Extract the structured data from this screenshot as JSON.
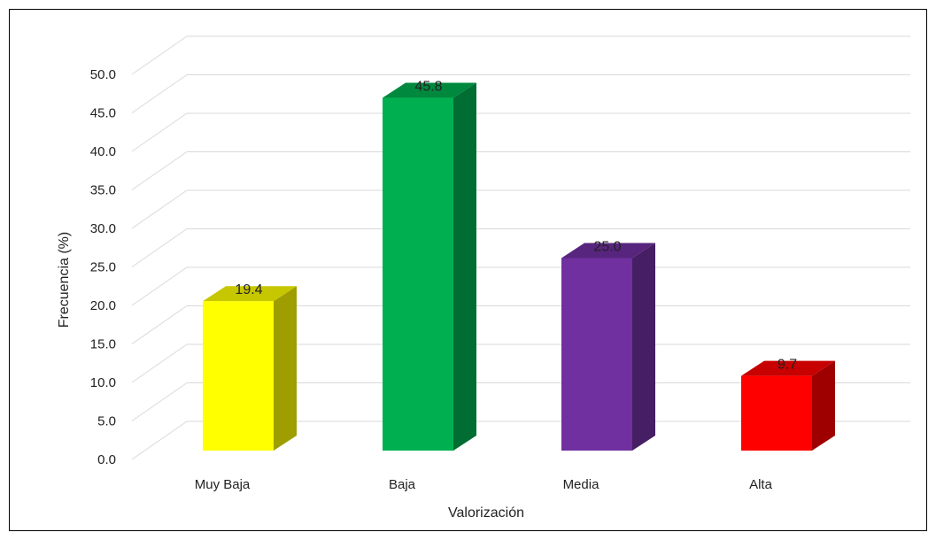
{
  "chart_data": {
    "type": "bar",
    "title": "",
    "xlabel": "Valorización",
    "ylabel": "Frecuencia (%)",
    "categories": [
      "Muy Baja",
      "Baja",
      "Media",
      "Alta"
    ],
    "values": [
      19.4,
      45.8,
      25.0,
      9.7
    ],
    "value_labels": [
      "19.4",
      "45.8",
      "25.0",
      "9.7"
    ],
    "colors": [
      "#ffff00",
      "#00b050",
      "#7030a0",
      "#ff0000"
    ],
    "yticks": [
      "0.0",
      "5.0",
      "10.0",
      "15.0",
      "20.0",
      "25.0",
      "30.0",
      "35.0",
      "40.0",
      "45.0",
      "50.0"
    ],
    "ylim": [
      0,
      50
    ],
    "grid": true,
    "style": "3d-column"
  }
}
